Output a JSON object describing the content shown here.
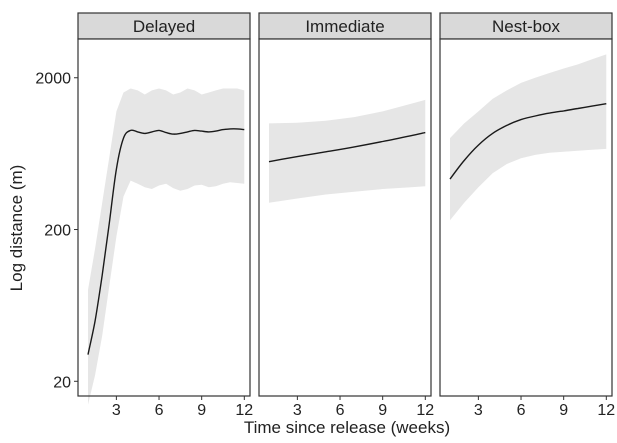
{
  "chart_data": {
    "type": "line",
    "xlabel": "Time since release (weeks)",
    "ylabel": "Log distance (m)",
    "y_scale": "log",
    "ylim": [
      16,
      3600
    ],
    "xlim": [
      0.3,
      12.4
    ],
    "x_ticks": [
      3,
      6,
      9,
      12
    ],
    "y_ticks": [
      20,
      200,
      2000
    ],
    "grid": false,
    "band": "confidence ribbon (light grey)",
    "colors": {
      "line": "#1a1a1a",
      "band": "#e6e6e6",
      "strip": "#d9d9d9",
      "frame": "#333333"
    },
    "panels": [
      {
        "label": "Delayed",
        "x": [
          1,
          1.5,
          2,
          2.5,
          3,
          3.5,
          4,
          4.5,
          5,
          5.5,
          6,
          6.5,
          7,
          7.5,
          8,
          8.5,
          9,
          9.5,
          10,
          10.5,
          11,
          11.5,
          12
        ],
        "y": [
          30,
          50,
          100,
          220,
          500,
          800,
          900,
          880,
          860,
          880,
          900,
          870,
          850,
          860,
          880,
          900,
          890,
          880,
          890,
          910,
          920,
          920,
          910
        ],
        "lower": [
          14,
          22,
          40,
          85,
          180,
          330,
          420,
          400,
          380,
          370,
          390,
          400,
          375,
          360,
          370,
          390,
          395,
          380,
          385,
          400,
          410,
          405,
          400
        ],
        "upper": [
          80,
          150,
          300,
          600,
          1200,
          1600,
          1700,
          1650,
          1550,
          1650,
          1700,
          1650,
          1550,
          1600,
          1700,
          1650,
          1550,
          1600,
          1650,
          1700,
          1700,
          1700,
          1650
        ]
      },
      {
        "label": "Immediate",
        "x": [
          1,
          3,
          5,
          7,
          9,
          11,
          12
        ],
        "y": [
          560,
          605,
          650,
          700,
          760,
          830,
          870
        ],
        "lower": [
          300,
          320,
          340,
          355,
          370,
          380,
          385
        ],
        "upper": [
          1000,
          1010,
          1040,
          1100,
          1200,
          1350,
          1430
        ]
      },
      {
        "label": "Nest-box",
        "x": [
          1,
          2,
          3,
          4,
          5,
          6,
          7,
          8,
          9,
          10,
          11,
          12
        ],
        "y": [
          430,
          570,
          720,
          860,
          970,
          1060,
          1120,
          1170,
          1210,
          1255,
          1300,
          1350
        ],
        "lower": [
          230,
          300,
          380,
          470,
          540,
          590,
          620,
          640,
          650,
          660,
          670,
          680
        ],
        "upper": [
          800,
          1000,
          1200,
          1450,
          1650,
          1850,
          2000,
          2150,
          2300,
          2450,
          2650,
          2850
        ]
      }
    ]
  }
}
